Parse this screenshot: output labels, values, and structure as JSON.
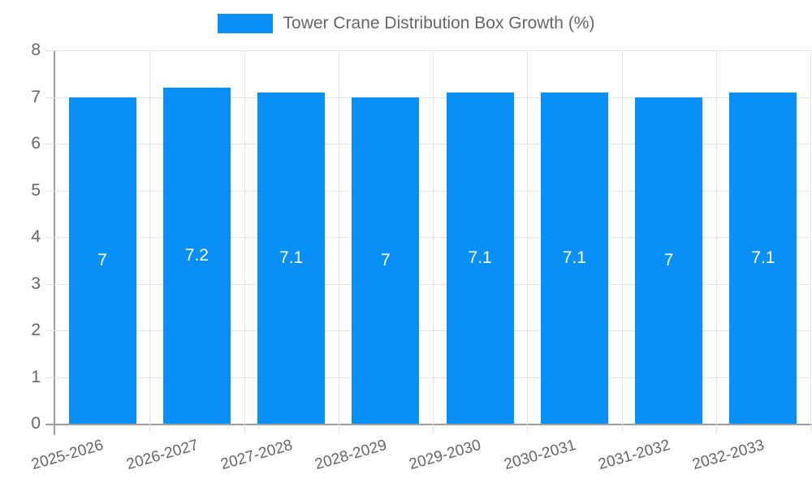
{
  "chart_data": {
    "type": "bar",
    "title": "Tower Crane Distribution Box Growth (%)",
    "legend_position": "top",
    "legend_entries": [
      "Tower Crane Distribution Box Growth (%)"
    ],
    "categories": [
      "2025-2026",
      "2026-2027",
      "2027-2028",
      "2028-2029",
      "2029-2030",
      "2030-2031",
      "2031-2032",
      "2032-2033"
    ],
    "values": [
      7,
      7.2,
      7.1,
      7,
      7.1,
      7.1,
      7,
      7.1
    ],
    "value_labels": [
      "7",
      "7.2",
      "7.1",
      "7",
      "7.1",
      "7.1",
      "7",
      "7.1"
    ],
    "xlabel": "",
    "ylabel": "",
    "ylim": [
      0,
      8
    ],
    "yticks": [
      0,
      1,
      2,
      3,
      4,
      5,
      6,
      7,
      8
    ],
    "ytick_labels": [
      "0",
      "1",
      "2",
      "3",
      "4",
      "5",
      "6",
      "7",
      "8"
    ],
    "grid": true,
    "x_label_rotation_deg": -16,
    "colors": {
      "bar": "#0890F6",
      "value_label": "#FFFFFF",
      "axis_text": "#666666",
      "grid_line": "#E3E3E3",
      "axis_line": "#9E9E9E",
      "background": "#FFFFFF"
    }
  }
}
